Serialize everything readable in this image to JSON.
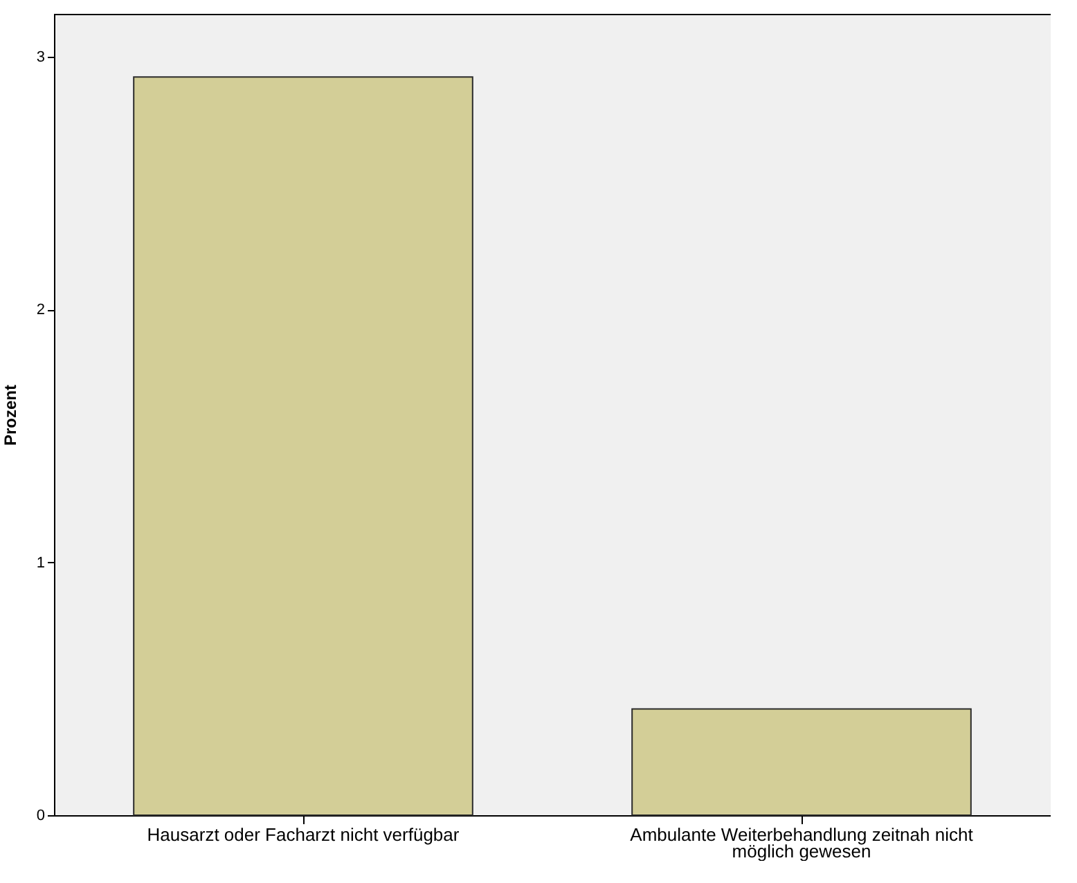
{
  "chart_data": {
    "type": "bar",
    "ylabel": "Prozent",
    "categories": [
      "Hausarzt oder Facharzt nicht verfügbar",
      "Ambulante Weiterbehandlung zeitnah nicht möglich gewesen"
    ],
    "values": [
      2.92,
      0.42
    ],
    "color": "#d3ce97",
    "ylim": [
      0,
      3.17
    ],
    "yticks": [
      0,
      1,
      2,
      3
    ],
    "grid": false
  }
}
